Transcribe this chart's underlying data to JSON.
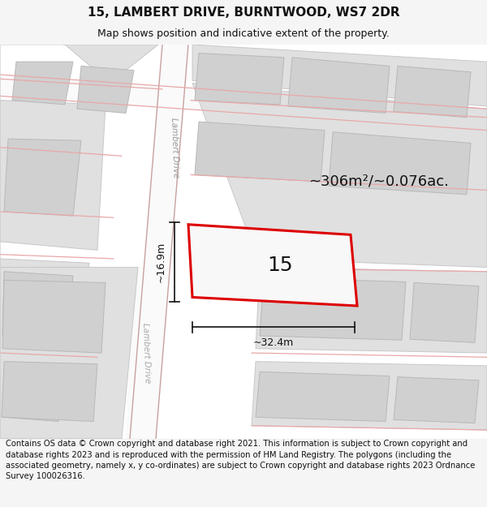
{
  "title_line1": "15, LAMBERT DRIVE, BURNTWOOD, WS7 2DR",
  "title_line2": "Map shows position and indicative extent of the property.",
  "footer_text": "Contains OS data © Crown copyright and database right 2021. This information is subject to Crown copyright and database rights 2023 and is reproduced with the permission of HM Land Registry. The polygons (including the associated geometry, namely x, y co-ordinates) are subject to Crown copyright and database rights 2023 Ordnance Survey 100026316.",
  "area_text": "~306m²/~0.076ac.",
  "label_width": "~32.4m",
  "label_height": "~16.9m",
  "property_number": "15",
  "bg_color": "#f5f5f5",
  "map_bg": "#ffffff",
  "block_color": "#d8d8d8",
  "block_edge": "#c0c0c0",
  "road_line_color": "#e8a8a8",
  "prop_edge": "#dd0000",
  "prop_fill": "#f8f8f8",
  "road_fill": "#ffffff",
  "title_fontsize": 11,
  "subtitle_fontsize": 9,
  "footer_fontsize": 7.2,
  "number_fontsize": 18,
  "area_fontsize": 13,
  "dim_fontsize": 9
}
